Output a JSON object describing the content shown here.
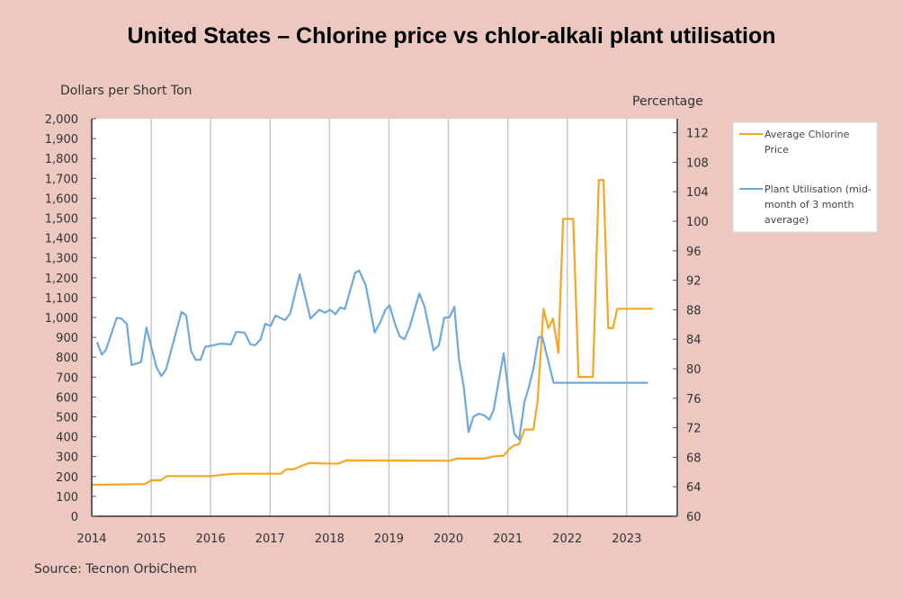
{
  "chart_data": {
    "type": "line",
    "title": "United States – Chlorine price vs chlor-alkali plant utilisation",
    "ylabel": "Dollars per Short Ton",
    "ylabel_right": "Percentage",
    "source": "Source: Tecnon OrbiChem",
    "xlim": [
      2014,
      2023.85
    ],
    "ylim": [
      0,
      2000
    ],
    "ylim_right": [
      60,
      113.9
    ],
    "x_ticks": [
      "2014",
      "2015",
      "2016",
      "2017",
      "2018",
      "2019",
      "2020",
      "2021",
      "2022",
      "2023"
    ],
    "y_ticks": [
      "0",
      "100",
      "200",
      "300",
      "400",
      "500",
      "600",
      "700",
      "800",
      "900",
      "1,000",
      "1,100",
      "1,200",
      "1,300",
      "1,400",
      "1,500",
      "1,600",
      "1,700",
      "1,800",
      "1,900",
      "2,000"
    ],
    "y_ticks_right": [
      "60",
      "64",
      "68",
      "72",
      "76",
      "80",
      "84",
      "88",
      "92",
      "96",
      "100",
      "104",
      "108",
      "112"
    ],
    "grid": "vertical",
    "legend_placement": "right",
    "series": [
      {
        "name": "Average Chlorine Price",
        "axis": "left",
        "color": "#f5a623",
        "x": [
          2014.0,
          2014.9,
          2015.0,
          2015.16,
          2015.26,
          2016.02,
          2016.19,
          2016.42,
          2017.18,
          2017.27,
          2017.4,
          2017.53,
          2017.66,
          2018.14,
          2018.28,
          2020.02,
          2020.14,
          2020.59,
          2020.74,
          2020.93,
          2021.04,
          2021.11,
          2021.19,
          2021.28,
          2021.43,
          2021.5,
          2021.6,
          2021.68,
          2021.76,
          2021.85,
          2021.93,
          2022.1,
          2022.19,
          2022.43,
          2022.53,
          2022.61,
          2022.69,
          2022.77,
          2022.84,
          2023.44
        ],
        "y": [
          158,
          162,
          181,
          181,
          202,
          202,
          209,
          214,
          214,
          236,
          236,
          254,
          268,
          264,
          281,
          279,
          290,
          290,
          300,
          305,
          343,
          357,
          362,
          436,
          436,
          576,
          1044,
          946,
          994,
          822,
          1496,
          1496,
          701,
          701,
          1692,
          1692,
          946,
          946,
          1044,
          1044
        ]
      },
      {
        "name": "Plant Utilisation (mid-month of 3 month average)",
        "axis": "right",
        "color": "#6fa8dc",
        "x": [
          2014.09,
          2014.17,
          2014.24,
          2014.42,
          2014.5,
          2014.59,
          2014.67,
          2014.83,
          2014.92,
          2015.09,
          2015.17,
          2015.25,
          2015.51,
          2015.59,
          2015.67,
          2015.75,
          2015.83,
          2015.91,
          2016.0,
          2016.17,
          2016.34,
          2016.43,
          2016.57,
          2016.67,
          2016.75,
          2016.84,
          2016.92,
          2017.01,
          2017.09,
          2017.25,
          2017.34,
          2017.5,
          2017.68,
          2017.83,
          2017.92,
          2018.01,
          2018.1,
          2018.18,
          2018.26,
          2018.43,
          2018.5,
          2018.61,
          2018.76,
          2018.86,
          2018.94,
          2019.01,
          2019.1,
          2019.18,
          2019.26,
          2019.35,
          2019.51,
          2019.6,
          2019.75,
          2019.84,
          2019.93,
          2020.02,
          2020.1,
          2020.18,
          2020.26,
          2020.34,
          2020.42,
          2020.51,
          2020.6,
          2020.69,
          2020.76,
          2020.93,
          2021.03,
          2021.11,
          2021.19,
          2021.28,
          2021.36,
          2021.43,
          2021.52,
          2021.58,
          2021.77,
          2023.36
        ],
        "y": [
          83.6,
          81.9,
          82.6,
          86.9,
          86.8,
          86.1,
          80.5,
          80.9,
          85.6,
          80.2,
          79.0,
          79.9,
          87.7,
          87.2,
          82.4,
          81.2,
          81.2,
          83.0,
          83.1,
          83.4,
          83.3,
          85.0,
          84.9,
          83.3,
          83.2,
          84.0,
          86.1,
          85.8,
          87.2,
          86.6,
          87.5,
          92.8,
          86.8,
          88.0,
          87.6,
          88.0,
          87.4,
          88.3,
          88.1,
          93.0,
          93.3,
          91.3,
          84.9,
          86.4,
          88.0,
          88.6,
          86.1,
          84.4,
          84.0,
          85.7,
          90.2,
          88.4,
          82.5,
          83.2,
          86.9,
          87.0,
          88.4,
          81.2,
          77.5,
          71.4,
          73.5,
          73.9,
          73.7,
          73.1,
          74.4,
          82.1,
          75.5,
          71.2,
          70.4,
          75.5,
          77.7,
          80.0,
          84.3,
          84.3,
          78.1,
          78.1
        ]
      }
    ],
    "legend": {
      "price_lines": [
        "Average Chlorine",
        "Price"
      ],
      "util_lines": [
        "Plant Utilisation (mid-",
        "month of 3 month",
        "average)"
      ]
    }
  }
}
